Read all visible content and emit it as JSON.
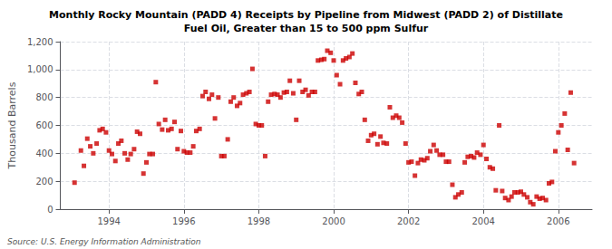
{
  "chart_data": {
    "type": "scatter",
    "title": "Monthly Rocky Mountain (PADD 4) Receipts by Pipeline from Midwest (PADD 2) of Distillate\nFuel Oil, Greater than 15 to 500 ppm Sulfur",
    "ylabel": "Thousand Barrels",
    "source": "Source: U.S. Energy Information Administration",
    "color": "#cc0000",
    "marker": "square",
    "grid": true,
    "xlim": [
      1992.7,
      2006.9
    ],
    "xticks": [
      1994,
      1996,
      1998,
      2000,
      2002,
      2004,
      2006
    ],
    "ylim": [
      0,
      1200
    ],
    "yticks": [
      0,
      200,
      400,
      600,
      800,
      {
        "value": 1000,
        "label": "1,000"
      },
      {
        "value": 1200,
        "label": "1,200"
      }
    ],
    "x": [
      1993.08,
      1993.25,
      1993.33,
      1993.42,
      1993.5,
      1993.58,
      1993.67,
      1993.75,
      1993.83,
      1993.92,
      1994.0,
      1994.08,
      1994.17,
      1994.25,
      1994.33,
      1994.42,
      1994.5,
      1994.58,
      1994.67,
      1994.75,
      1994.83,
      1994.92,
      1995.0,
      1995.08,
      1995.17,
      1995.25,
      1995.33,
      1995.42,
      1995.5,
      1995.58,
      1995.67,
      1995.75,
      1995.83,
      1995.92,
      1996.0,
      1996.08,
      1996.17,
      1996.25,
      1996.33,
      1996.42,
      1996.5,
      1996.58,
      1996.67,
      1996.75,
      1996.83,
      1996.92,
      1997.0,
      1997.08,
      1997.17,
      1997.25,
      1997.33,
      1997.42,
      1997.5,
      1997.58,
      1997.67,
      1997.75,
      1997.83,
      1997.92,
      1998.0,
      1998.08,
      1998.17,
      1998.25,
      1998.33,
      1998.42,
      1998.5,
      1998.58,
      1998.67,
      1998.75,
      1998.83,
      1998.92,
      1999.0,
      1999.08,
      1999.17,
      1999.25,
      1999.33,
      1999.42,
      1999.5,
      1999.58,
      1999.67,
      1999.75,
      1999.83,
      1999.92,
      2000.0,
      2000.08,
      2000.17,
      2000.25,
      2000.33,
      2000.42,
      2000.5,
      2000.58,
      2000.67,
      2000.75,
      2000.83,
      2000.92,
      2001.0,
      2001.08,
      2001.17,
      2001.25,
      2001.33,
      2001.42,
      2001.5,
      2001.58,
      2001.67,
      2001.75,
      2001.83,
      2001.92,
      2002.0,
      2002.08,
      2002.17,
      2002.25,
      2002.33,
      2002.42,
      2002.5,
      2002.58,
      2002.67,
      2002.75,
      2002.83,
      2002.92,
      2003.0,
      2003.08,
      2003.17,
      2003.25,
      2003.33,
      2003.42,
      2003.5,
      2003.58,
      2003.67,
      2003.75,
      2003.83,
      2003.92,
      2004.0,
      2004.08,
      2004.17,
      2004.25,
      2004.33,
      2004.42,
      2004.5,
      2004.58,
      2004.67,
      2004.75,
      2004.83,
      2004.92,
      2005.0,
      2005.08,
      2005.17,
      2005.25,
      2005.33,
      2005.42,
      2005.5,
      2005.58,
      2005.67,
      2005.75,
      2005.83,
      2005.92,
      2006.0,
      2006.08,
      2006.17,
      2006.25,
      2006.33,
      2006.42
    ],
    "values": [
      190,
      420,
      310,
      505,
      450,
      400,
      470,
      565,
      575,
      550,
      420,
      395,
      345,
      470,
      490,
      400,
      355,
      395,
      430,
      555,
      540,
      255,
      335,
      395,
      395,
      910,
      610,
      570,
      640,
      565,
      575,
      625,
      430,
      560,
      415,
      405,
      405,
      450,
      560,
      575,
      810,
      840,
      790,
      820,
      650,
      800,
      380,
      380,
      500,
      770,
      800,
      740,
      760,
      820,
      830,
      840,
      1005,
      610,
      600,
      600,
      380,
      770,
      820,
      825,
      820,
      800,
      835,
      840,
      920,
      830,
      640,
      920,
      840,
      855,
      815,
      840,
      840,
      1065,
      1070,
      1075,
      1135,
      1120,
      1065,
      960,
      895,
      1065,
      1080,
      1090,
      1115,
      905,
      825,
      840,
      640,
      490,
      530,
      540,
      465,
      520,
      475,
      470,
      730,
      655,
      670,
      655,
      620,
      470,
      335,
      340,
      240,
      330,
      355,
      350,
      365,
      415,
      460,
      420,
      390,
      390,
      340,
      340,
      175,
      85,
      105,
      120,
      335,
      375,
      380,
      370,
      405,
      390,
      460,
      360,
      300,
      290,
      135,
      600,
      130,
      80,
      65,
      90,
      120,
      120,
      125,
      105,
      85,
      50,
      35,
      90,
      75,
      80,
      65,
      185,
      195,
      415,
      550,
      600,
      685,
      425,
      835,
      330
    ]
  }
}
